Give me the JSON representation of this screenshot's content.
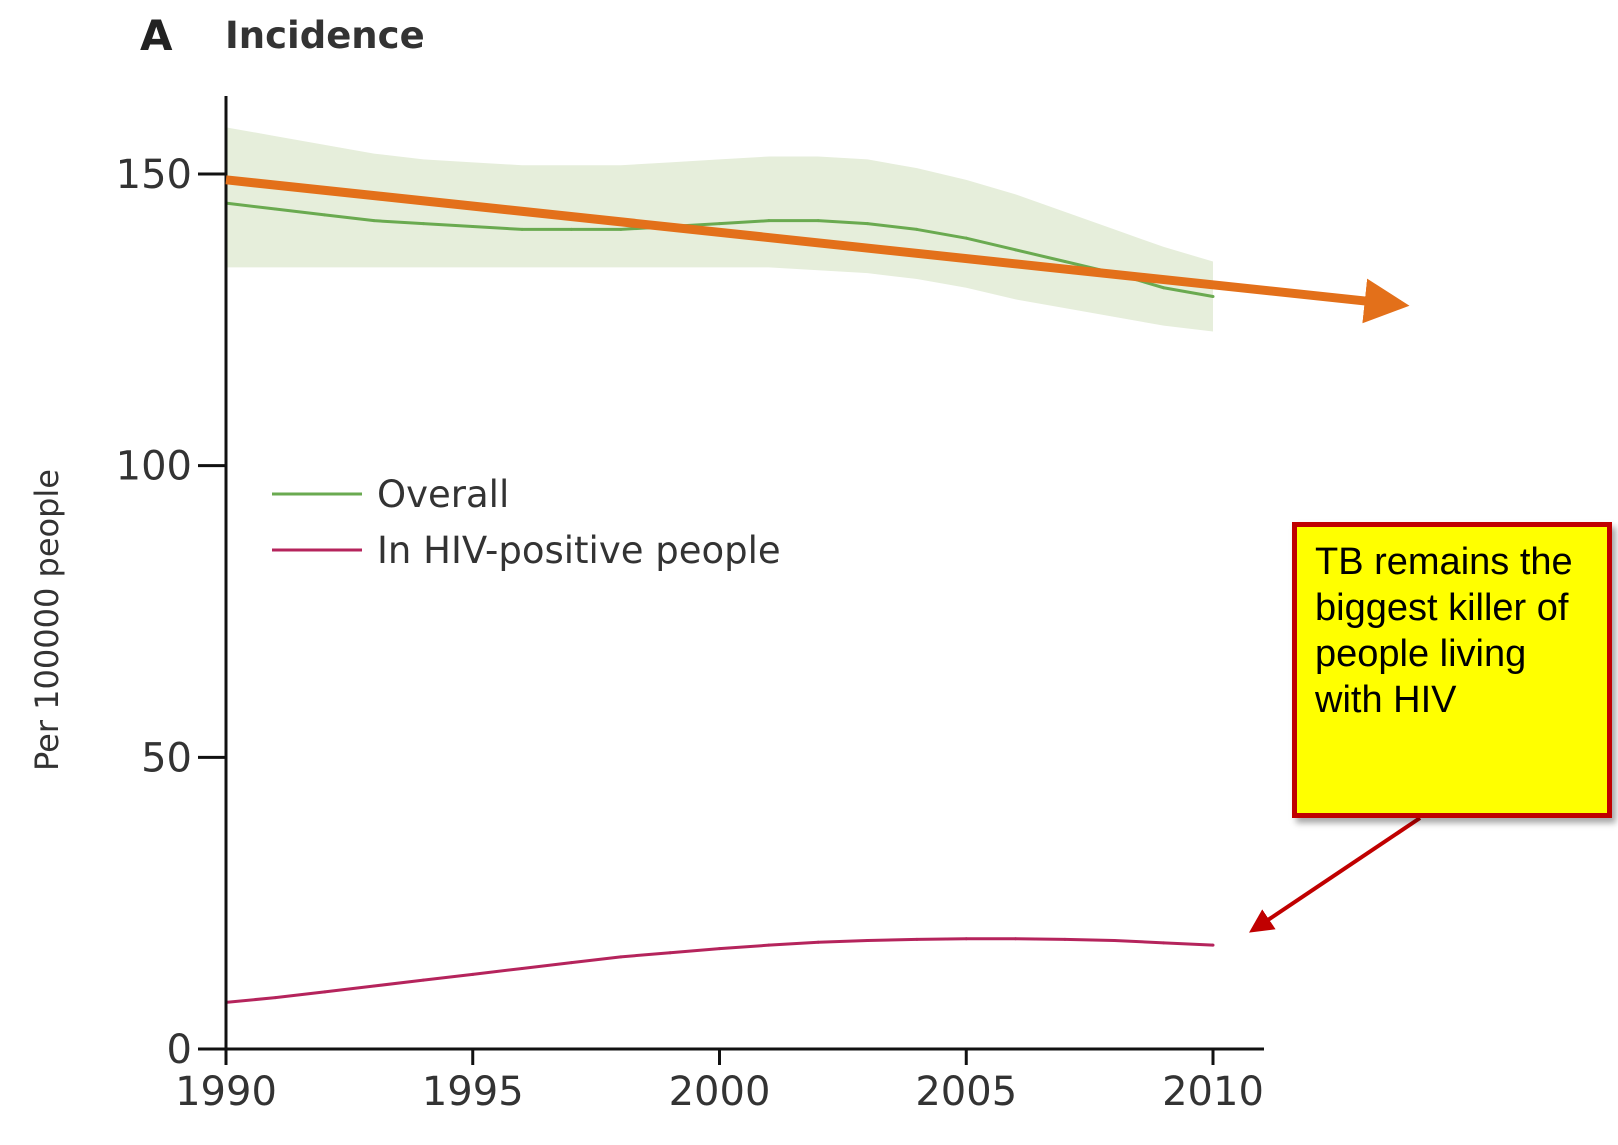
{
  "panel": {
    "letter": "A",
    "title": "Incidence"
  },
  "callout": {
    "text": "TB remains the biggest killer of people living with HIV",
    "fill": "#ffff00",
    "border": "#c00000"
  },
  "trend_arrow": {
    "from": [
      1990,
      149
    ],
    "to": [
      2010,
      131
    ],
    "color": "#e3701a"
  },
  "callout_arrow": {
    "points_to": [
      2010,
      18
    ],
    "color": "#c00000"
  },
  "chart_data": {
    "type": "line",
    "title": "Incidence",
    "xlabel": "",
    "ylabel": "Per 100000 people",
    "xlim": [
      1990,
      2011
    ],
    "ylim": [
      0,
      165
    ],
    "xticks": [
      1990,
      1995,
      2000,
      2005,
      2010
    ],
    "yticks": [
      0,
      50,
      100,
      150
    ],
    "grid": false,
    "legend_position": "center-left",
    "series": [
      {
        "name": "Overall",
        "color": "#6aaa50",
        "x": [
          1990,
          1991,
          1992,
          1993,
          1994,
          1995,
          1996,
          1997,
          1998,
          1999,
          2000,
          2001,
          2002,
          2003,
          2004,
          2005,
          2006,
          2007,
          2008,
          2009,
          2010
        ],
        "values": [
          145,
          144,
          143,
          142,
          141.5,
          141,
          140.5,
          140.5,
          140.5,
          141,
          141.5,
          142,
          142,
          141.5,
          140.5,
          139,
          137,
          135,
          133,
          130.5,
          129
        ],
        "band_upper": [
          158,
          156.5,
          155,
          153.5,
          152.5,
          152,
          151.5,
          151.5,
          151.5,
          152,
          152.5,
          153,
          153,
          152.5,
          151,
          149,
          146.5,
          143.5,
          140.5,
          137.5,
          135
        ],
        "band_lower": [
          134,
          134,
          134,
          134,
          134,
          134,
          134,
          134,
          134,
          134,
          134,
          134,
          133.5,
          133,
          132,
          130.5,
          128.5,
          127,
          125.5,
          124,
          123
        ],
        "band_color": "#e6eedb"
      },
      {
        "name": "In HIV-positive people",
        "color": "#b5245c",
        "x": [
          1990,
          1991,
          1992,
          1993,
          1994,
          1995,
          1996,
          1997,
          1998,
          1999,
          2000,
          2001,
          2002,
          2003,
          2004,
          2005,
          2006,
          2007,
          2008,
          2009,
          2010
        ],
        "values": [
          8,
          8.8,
          9.8,
          10.8,
          11.8,
          12.8,
          13.8,
          14.8,
          15.8,
          16.5,
          17.2,
          17.8,
          18.3,
          18.6,
          18.8,
          18.9,
          18.9,
          18.8,
          18.6,
          18.2,
          17.8
        ]
      }
    ]
  }
}
